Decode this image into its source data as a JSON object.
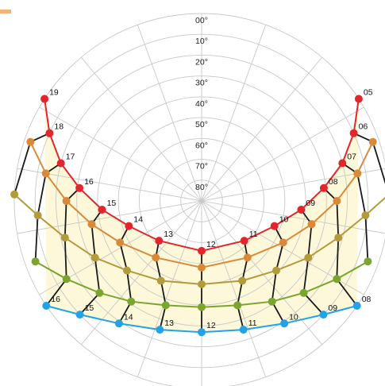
{
  "colors": {
    "background": "#ffffff",
    "grid": "#c8c8c8",
    "fill": "#fdf8d9",
    "analemma": "#1a1a1a",
    "corner_mark": "#f0b479"
  },
  "altitude_labels": [
    "00°",
    "10°",
    "20°",
    "30°",
    "40°",
    "50°",
    "60°",
    "70°",
    "80°"
  ],
  "chart_data": {
    "type": "polar-sunpath",
    "azimuth_grid_step_deg": 20,
    "altitude_rings_deg": [
      0,
      10,
      20,
      30,
      40,
      50,
      60,
      70,
      80
    ],
    "hour_labels_top": [
      "05",
      "06",
      "07",
      "08",
      "09",
      "10",
      "11",
      "12",
      "13",
      "14",
      "15",
      "16",
      "17",
      "18",
      "19"
    ],
    "hour_labels_bottom": [
      "08",
      "09",
      "10",
      "11",
      "12",
      "13",
      "14",
      "15",
      "16"
    ],
    "series": [
      {
        "color": "#e3262c",
        "points": [
          {
            "hour": "05",
            "az": 57,
            "alt": 0
          },
          {
            "hour": "06",
            "az": 66,
            "alt": 10
          },
          {
            "hour": "07",
            "az": 75,
            "alt": 20
          },
          {
            "hour": "08",
            "az": 84,
            "alt": 31
          },
          {
            "hour": "09",
            "az": 95,
            "alt": 42
          },
          {
            "hour": "10",
            "az": 109,
            "alt": 53
          },
          {
            "hour": "11",
            "az": 133,
            "alt": 62
          },
          {
            "hour": "12",
            "az": 180,
            "alt": 66
          },
          {
            "hour": "13",
            "az": 227,
            "alt": 62
          },
          {
            "hour": "14",
            "az": 251,
            "alt": 53
          },
          {
            "hour": "15",
            "az": 265,
            "alt": 42
          },
          {
            "hour": "16",
            "az": 276,
            "alt": 31
          },
          {
            "hour": "17",
            "az": 285,
            "alt": 20
          },
          {
            "hour": "18",
            "az": 294,
            "alt": 10
          },
          {
            "hour": "19",
            "az": 303,
            "alt": 0
          }
        ]
      },
      {
        "color": "#d9893a",
        "points": [
          {
            "hour": "06",
            "az": 71,
            "alt": 3
          },
          {
            "hour": "07",
            "az": 80,
            "alt": 14
          },
          {
            "hour": "08",
            "az": 90,
            "alt": 25
          },
          {
            "hour": "09",
            "az": 102,
            "alt": 36
          },
          {
            "hour": "10",
            "az": 117,
            "alt": 46
          },
          {
            "hour": "11",
            "az": 141,
            "alt": 55
          },
          {
            "hour": "12",
            "az": 180,
            "alt": 58
          },
          {
            "hour": "13",
            "az": 219,
            "alt": 55
          },
          {
            "hour": "14",
            "az": 243,
            "alt": 46
          },
          {
            "hour": "15",
            "az": 258,
            "alt": 36
          },
          {
            "hour": "16",
            "az": 270,
            "alt": 25
          },
          {
            "hour": "17",
            "az": 280,
            "alt": 14
          },
          {
            "hour": "18",
            "az": 289,
            "alt": 3
          }
        ]
      },
      {
        "color": "#b39a3b",
        "points": [
          {
            "hour": "06",
            "az": 88,
            "alt": 0
          },
          {
            "hour": "07",
            "az": 95,
            "alt": 11
          },
          {
            "hour": "08",
            "az": 105,
            "alt": 22
          },
          {
            "hour": "09",
            "az": 118,
            "alt": 32
          },
          {
            "hour": "10",
            "az": 133,
            "alt": 41
          },
          {
            "hour": "11",
            "az": 153,
            "alt": 47
          },
          {
            "hour": "12",
            "az": 180,
            "alt": 50
          },
          {
            "hour": "13",
            "az": 207,
            "alt": 47
          },
          {
            "hour": "14",
            "az": 227,
            "alt": 41
          },
          {
            "hour": "15",
            "az": 242,
            "alt": 32
          },
          {
            "hour": "16",
            "az": 255,
            "alt": 22
          },
          {
            "hour": "17",
            "az": 265,
            "alt": 11
          },
          {
            "hour": "18",
            "az": 272,
            "alt": 0
          }
        ]
      },
      {
        "color": "#7aa62f",
        "points": [
          {
            "hour": "07",
            "az": 110,
            "alt": 5
          },
          {
            "hour": "08",
            "az": 120,
            "alt": 15
          },
          {
            "hour": "09",
            "az": 132,
            "alt": 24
          },
          {
            "hour": "10",
            "az": 145,
            "alt": 31
          },
          {
            "hour": "11",
            "az": 161,
            "alt": 37
          },
          {
            "hour": "12",
            "az": 180,
            "alt": 39
          },
          {
            "hour": "13",
            "az": 199,
            "alt": 37
          },
          {
            "hour": "14",
            "az": 215,
            "alt": 31
          },
          {
            "hour": "15",
            "az": 228,
            "alt": 24
          },
          {
            "hour": "16",
            "az": 240,
            "alt": 15
          },
          {
            "hour": "17",
            "az": 250,
            "alt": 5
          }
        ]
      },
      {
        "color": "#22a3e8",
        "points": [
          {
            "hour": "08",
            "az": 124,
            "alt": 0
          },
          {
            "hour": "09",
            "az": 133,
            "alt": 10
          },
          {
            "hour": "10",
            "az": 146,
            "alt": 19
          },
          {
            "hour": "11",
            "az": 162,
            "alt": 25
          },
          {
            "hour": "12",
            "az": 180,
            "alt": 27
          },
          {
            "hour": "13",
            "az": 198,
            "alt": 25
          },
          {
            "hour": "14",
            "az": 214,
            "alt": 19
          },
          {
            "hour": "15",
            "az": 227,
            "alt": 10
          },
          {
            "hour": "16",
            "az": 236,
            "alt": 0
          }
        ]
      }
    ]
  }
}
